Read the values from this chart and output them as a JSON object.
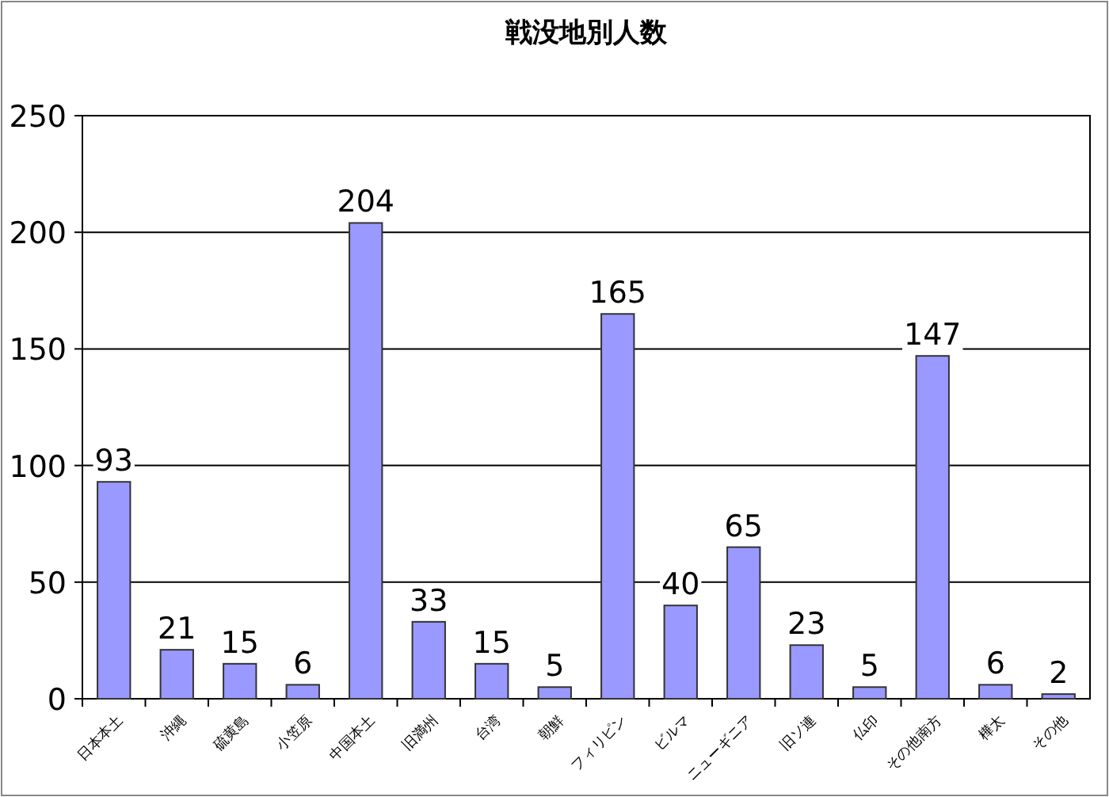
{
  "chart_data": {
    "type": "bar",
    "title": "戦没地別人数",
    "categories": [
      "日本本土",
      "沖縄",
      "硫黄島",
      "小笠原",
      "中国本土",
      "旧満州",
      "台湾",
      "朝鮮",
      "フィリピン",
      "ビルマ",
      "ニューギニア",
      "旧ソ連",
      "仏印",
      "その他南方",
      "樺太",
      "その他"
    ],
    "values": [
      93,
      21,
      15,
      6,
      204,
      33,
      15,
      5,
      165,
      40,
      65,
      23,
      5,
      147,
      6,
      2
    ],
    "color": "#9999ff",
    "ylim": [
      0,
      250
    ],
    "yticks": [
      0,
      50,
      100,
      150,
      200,
      250
    ],
    "grid": "y",
    "data_labels": true
  }
}
